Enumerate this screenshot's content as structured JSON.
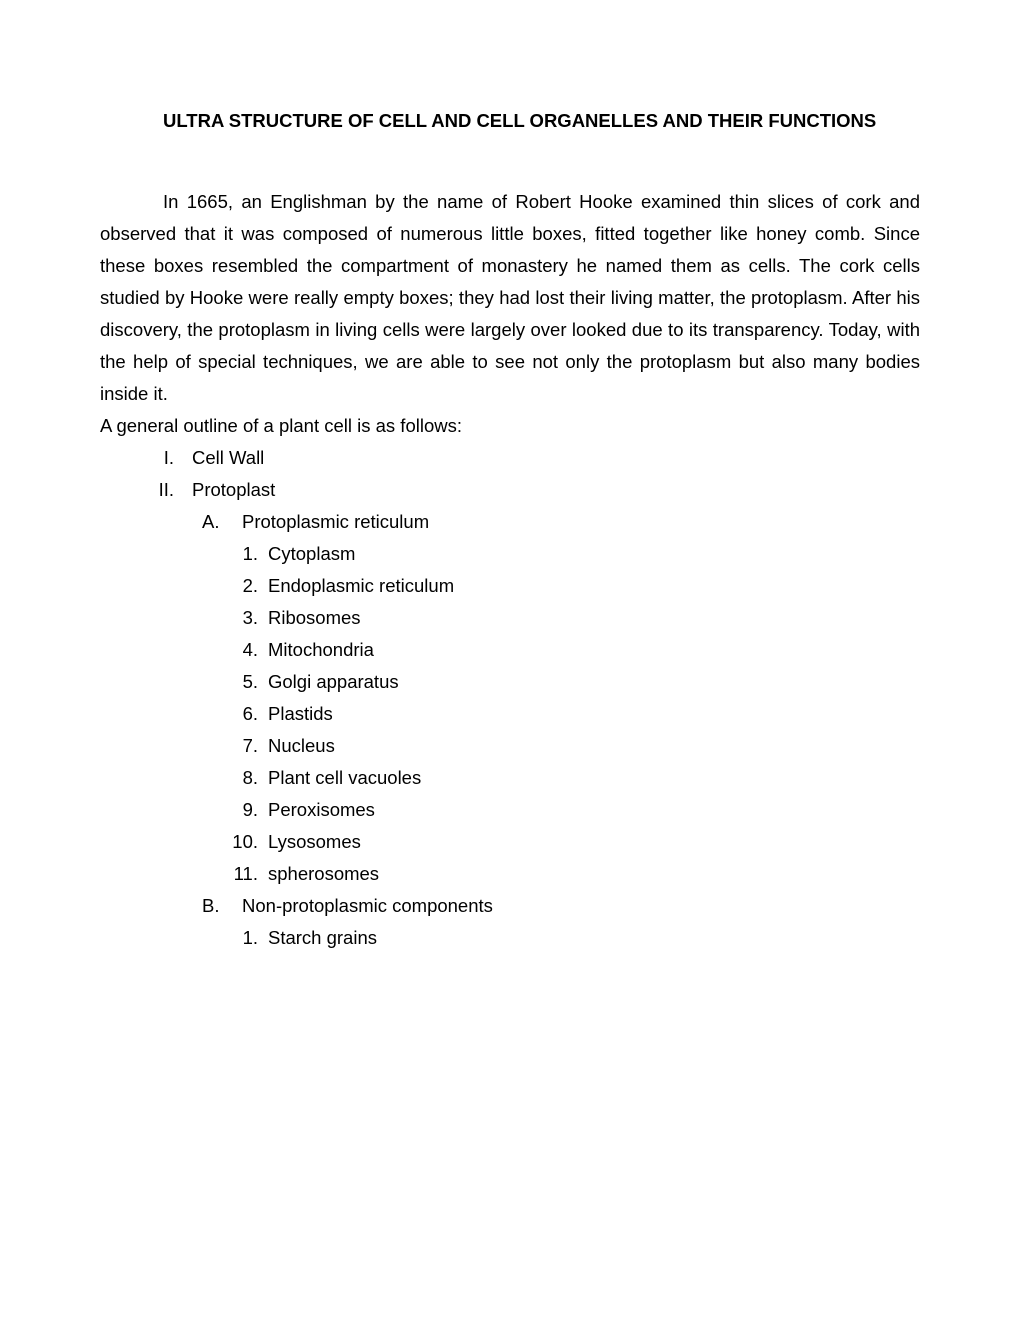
{
  "title": "ULTRA STRUCTURE OF CELL AND CELL ORGANELLES AND THEIR FUNCTIONS",
  "paragraph": "In 1665, an Englishman by the name of Robert Hooke examined thin slices of cork and observed that it was composed of numerous little boxes, fitted together like honey comb. Since these boxes resembled the compartment of monastery he named them as cells. The cork cells studied by Hooke were really empty boxes; they had lost their living matter, the protoplasm. After his discovery, the protoplasm in living cells were largely over looked due to its transparency. Today, with the help of special techniques, we are able to see not only the protoplasm but also many bodies inside it.",
  "subheading": "A general outline of a plant cell is as follows:",
  "outline": {
    "items": [
      {
        "marker": "I.",
        "label": "Cell Wall"
      },
      {
        "marker": "II.",
        "label": "Protoplast",
        "children": [
          {
            "marker": "A.",
            "label": "Protoplasmic reticulum",
            "children": [
              {
                "marker": "1.",
                "label": "Cytoplasm"
              },
              {
                "marker": "2.",
                "label": "Endoplasmic reticulum"
              },
              {
                "marker": "3.",
                "label": "Ribosomes"
              },
              {
                "marker": "4.",
                "label": "Mitochondria"
              },
              {
                "marker": "5.",
                "label": "Golgi apparatus"
              },
              {
                "marker": "6.",
                "label": "Plastids"
              },
              {
                "marker": "7.",
                "label": "Nucleus"
              },
              {
                "marker": "8.",
                "label": "Plant cell vacuoles"
              },
              {
                "marker": "9.",
                "label": "Peroxisomes"
              },
              {
                "marker": "10.",
                "label": "Lysosomes"
              },
              {
                "marker": "11.",
                "label": "spherosomes"
              }
            ]
          },
          {
            "marker": "B.",
            "label": "Non-protoplasmic components",
            "children": [
              {
                "marker": "1.",
                "label": "Starch grains"
              }
            ]
          }
        ]
      }
    ]
  }
}
